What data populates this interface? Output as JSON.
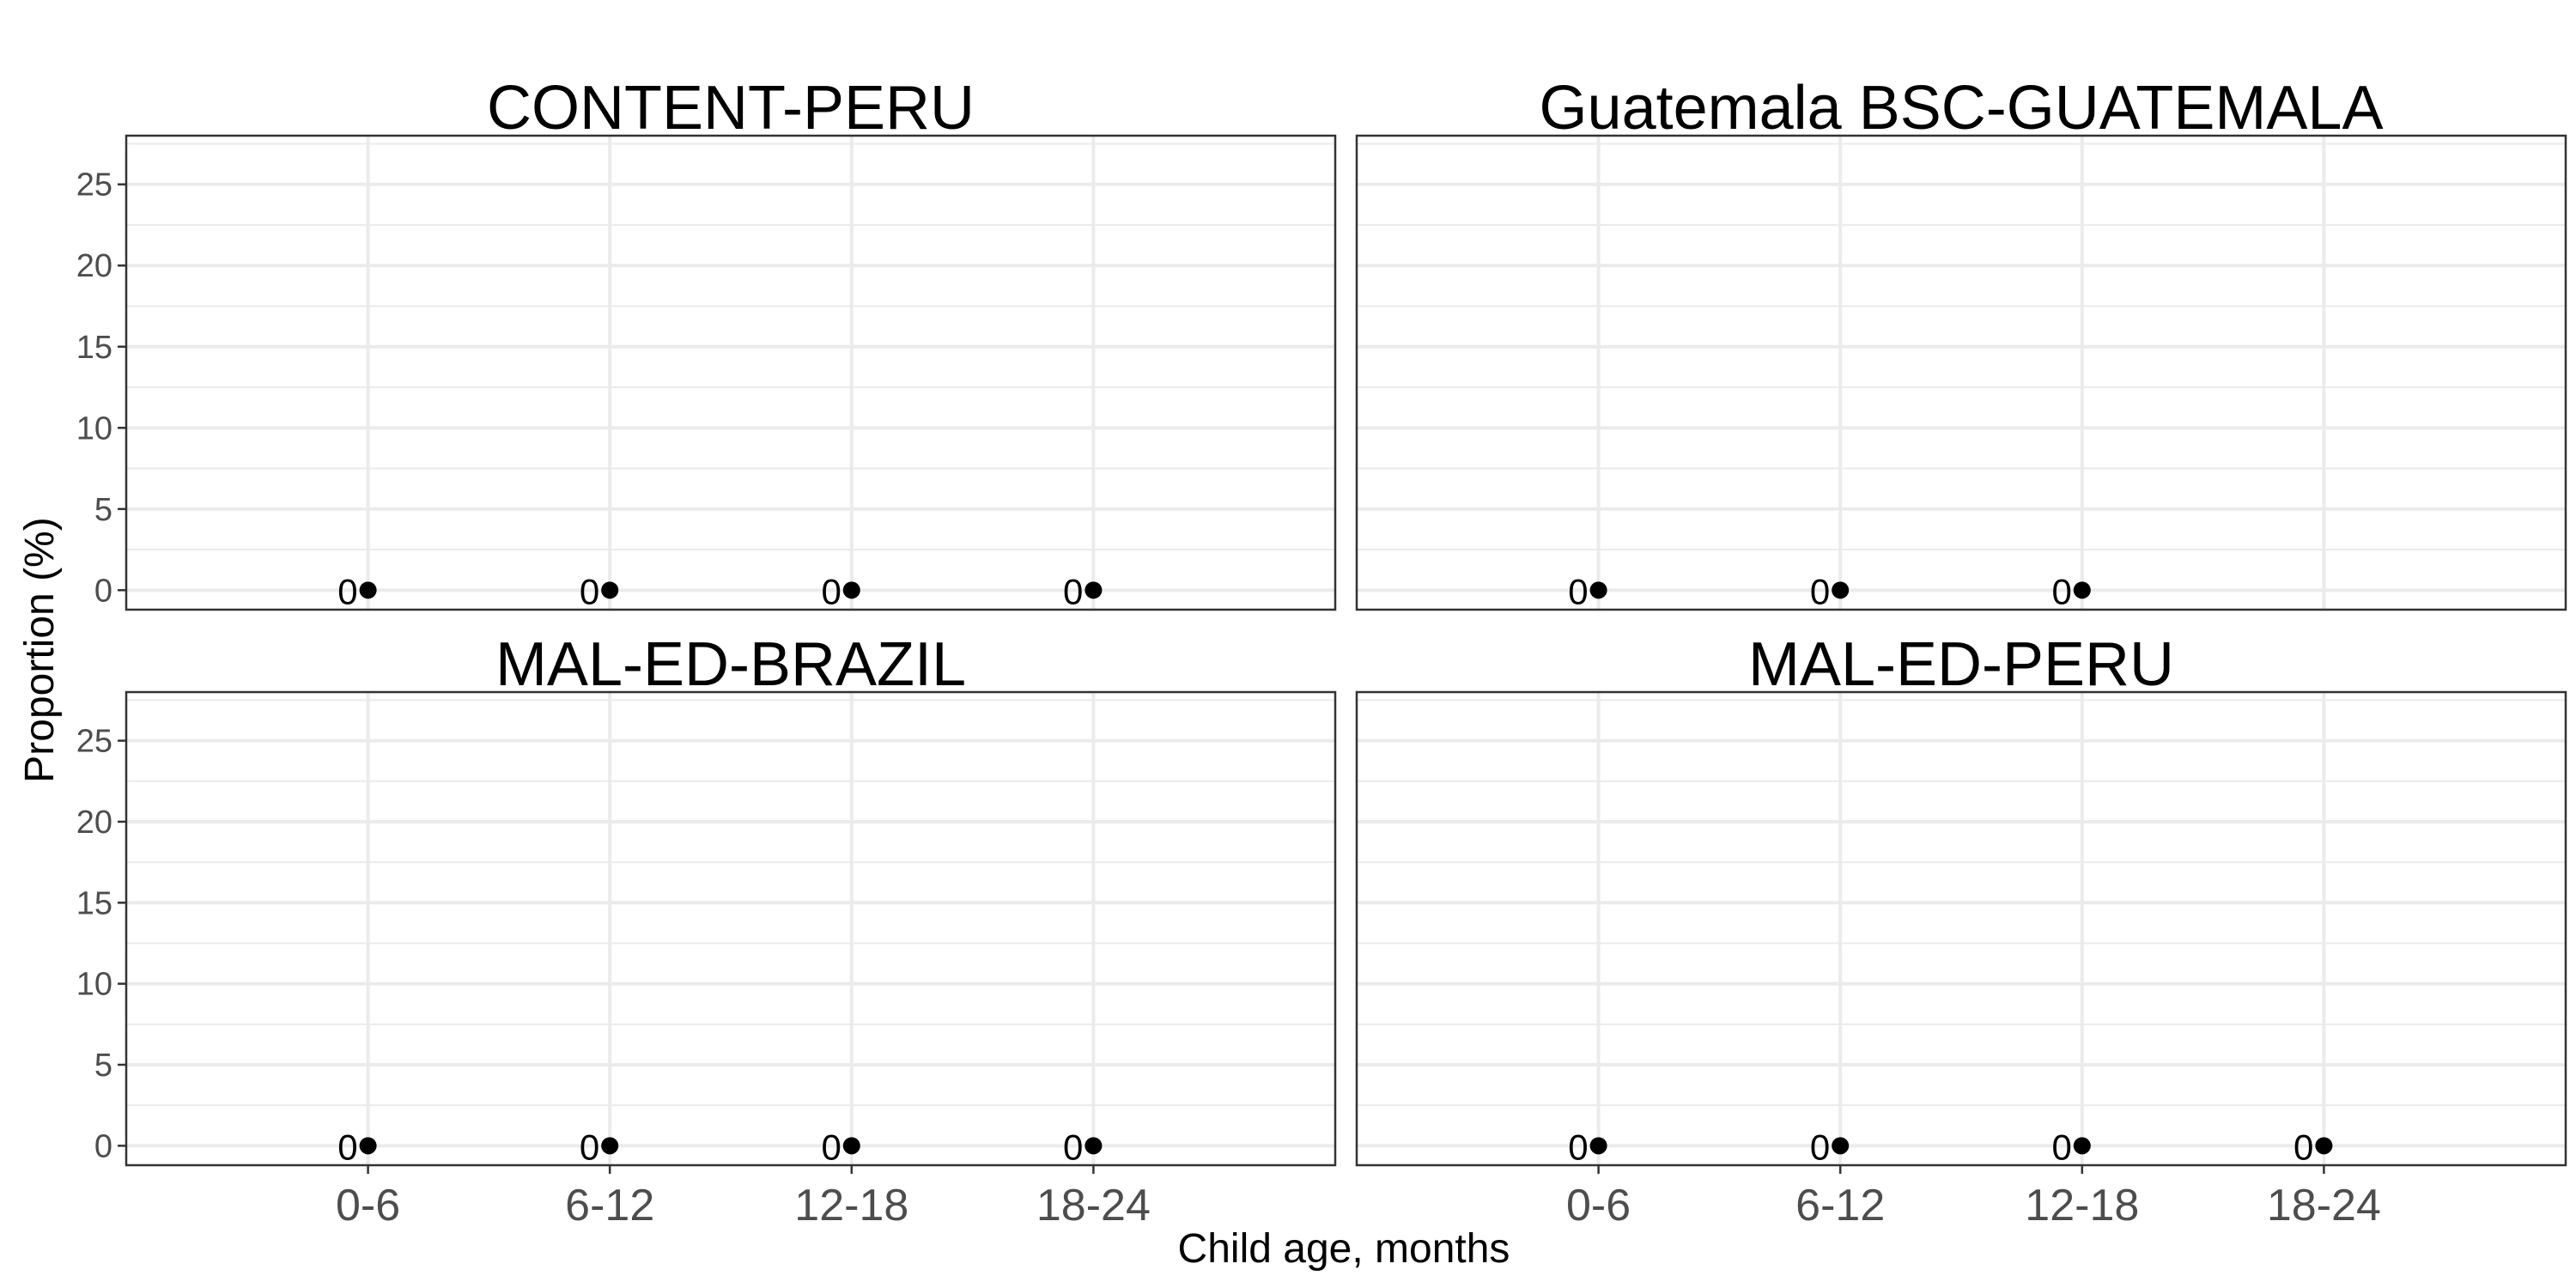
{
  "chart_data": {
    "type": "scatter",
    "xlabel": "Child age, months",
    "ylabel": "Proportion (%)",
    "x_categories": [
      "0-6",
      "6-12",
      "12-18",
      "18-24"
    ],
    "ylim": [
      -1.2,
      28
    ],
    "yticks": [
      0,
      5,
      10,
      15,
      20,
      25
    ],
    "grid": true,
    "panels": [
      {
        "title": "CONTENT-PERU",
        "points": [
          {
            "x": "0-6",
            "y": 0,
            "label": "0"
          },
          {
            "x": "6-12",
            "y": 0,
            "label": "0"
          },
          {
            "x": "12-18",
            "y": 0,
            "label": "0"
          },
          {
            "x": "18-24",
            "y": 0,
            "label": "0"
          }
        ]
      },
      {
        "title": "Guatemala BSC-GUATEMALA",
        "points": [
          {
            "x": "0-6",
            "y": 0,
            "label": "0"
          },
          {
            "x": "6-12",
            "y": 0,
            "label": "0"
          },
          {
            "x": "12-18",
            "y": 0,
            "label": "0"
          }
        ]
      },
      {
        "title": "MAL-ED-BRAZIL",
        "points": [
          {
            "x": "0-6",
            "y": 0,
            "label": "0"
          },
          {
            "x": "6-12",
            "y": 0,
            "label": "0"
          },
          {
            "x": "12-18",
            "y": 0,
            "label": "0"
          },
          {
            "x": "18-24",
            "y": 0,
            "label": "0"
          }
        ]
      },
      {
        "title": "MAL-ED-PERU",
        "points": [
          {
            "x": "0-6",
            "y": 0,
            "label": "0"
          },
          {
            "x": "6-12",
            "y": 0,
            "label": "0"
          },
          {
            "x": "12-18",
            "y": 0,
            "label": "0"
          },
          {
            "x": "18-24",
            "y": 0,
            "label": "0"
          }
        ]
      }
    ],
    "colors": {
      "point": "#000000",
      "grid": "#ebebeb",
      "border": "#333333",
      "tick_text": "#4d4d4d"
    }
  }
}
